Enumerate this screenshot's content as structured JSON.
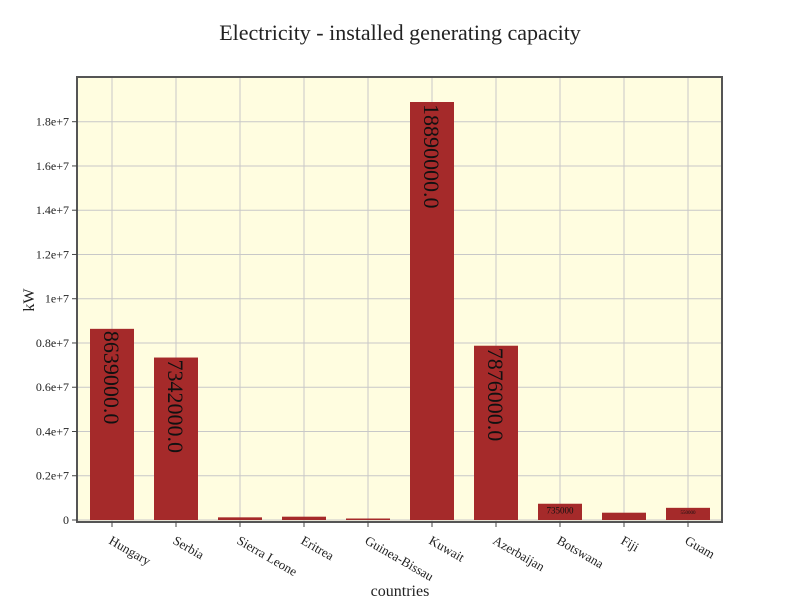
{
  "chart_data": {
    "type": "bar",
    "title": "Electricity - installed generating capacity",
    "xlabel": "countries",
    "ylabel": "kW",
    "categories": [
      "Hungary",
      "Serbia",
      "Sierra Leone",
      "Eritrea",
      "Guinea-Bissau",
      "Kuwait",
      "Azerbaijan",
      "Botswana",
      "Fiji",
      "Guam"
    ],
    "values": [
      8639000,
      7342000,
      120000,
      150000,
      30000,
      18890000,
      7876000,
      735000,
      330000,
      550000
    ],
    "data_labels": [
      "8639000.0",
      "7342000.0",
      "",
      "",
      "",
      "18890000.0",
      "7876000.0",
      "735000",
      "",
      "550000"
    ],
    "ylim": [
      0,
      19800000
    ],
    "yticks": [
      0,
      2000000,
      4000000,
      6000000,
      8000000,
      10000000,
      12000000,
      14000000,
      16000000,
      18000000
    ],
    "ytick_labels": [
      "0",
      "0.2e+7",
      "0.4e+7",
      "0.6e+7",
      "0.8e+7",
      "1e+7",
      "1.2e+7",
      "1.4e+7",
      "1.6e+7",
      "1.8e+7"
    ],
    "grid": true,
    "colors": {
      "bar": "#a52a2a",
      "plot_background": "#fffde0"
    }
  }
}
